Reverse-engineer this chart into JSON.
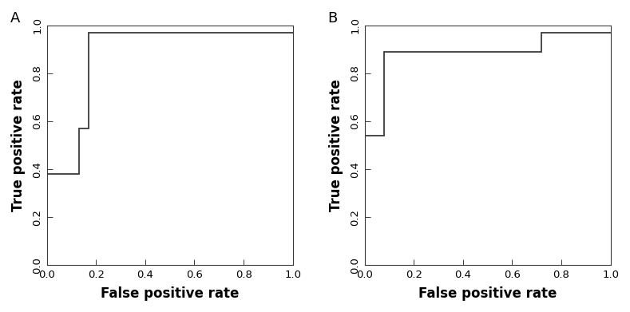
{
  "panel_A_label": "A",
  "panel_B_label": "B",
  "roc_A_x": [
    0.0,
    0.0,
    0.13,
    0.13,
    0.17,
    0.17,
    1.0
  ],
  "roc_A_y": [
    0.0,
    0.38,
    0.38,
    0.57,
    0.57,
    0.97,
    0.97
  ],
  "roc_B_x": [
    0.0,
    0.0,
    0.08,
    0.08,
    0.72,
    0.72,
    1.0
  ],
  "roc_B_y": [
    0.0,
    0.54,
    0.54,
    0.89,
    0.89,
    0.97,
    0.97
  ],
  "xlabel": "False positive rate",
  "ylabel": "True positive rate",
  "xlim": [
    0.0,
    1.0
  ],
  "ylim": [
    0.0,
    1.0
  ],
  "xticks": [
    0.0,
    0.2,
    0.4,
    0.6,
    0.8,
    1.0
  ],
  "yticks": [
    0.0,
    0.2,
    0.4,
    0.6,
    0.8,
    1.0
  ],
  "line_color": "#3a3a3a",
  "line_width": 1.3,
  "bg_color": "#ffffff",
  "tick_label_fontsize": 9.5,
  "axis_label_fontsize": 12,
  "panel_label_fontsize": 13
}
